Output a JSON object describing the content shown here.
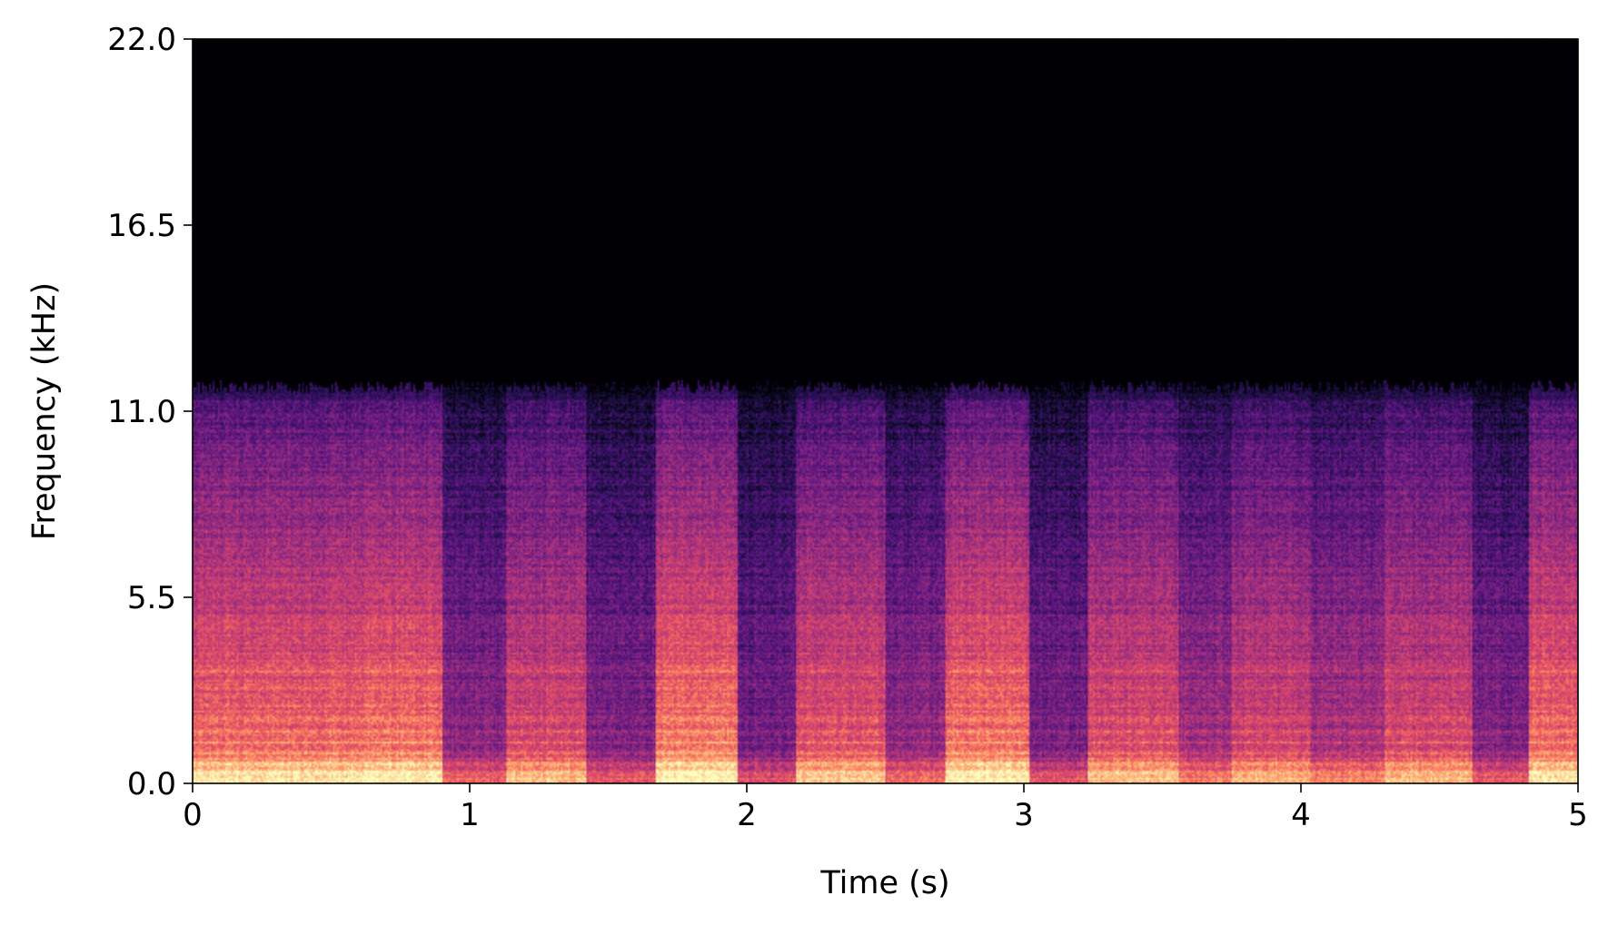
{
  "chart_data": {
    "type": "heatmap",
    "subtype": "spectrogram",
    "title": "",
    "xlabel": "Time (s)",
    "ylabel": "Frequency (kHz)",
    "xlim": [
      0,
      5
    ],
    "ylim": [
      0,
      22.0
    ],
    "xticks": [
      0,
      1,
      2,
      3,
      4,
      5
    ],
    "xtick_labels": [
      "0",
      "1",
      "2",
      "3",
      "4",
      "5"
    ],
    "yticks": [
      0.0,
      5.5,
      11.0,
      16.5,
      22.0
    ],
    "ytick_labels": [
      "0.0",
      "5.5",
      "11.0",
      "16.5",
      "22.0"
    ],
    "colormap": "magma",
    "grid": false,
    "legend": "none",
    "energy_cutoff_khz": 11.9,
    "segments": [
      {
        "start": 0.0,
        "end": 0.62,
        "level": 0.72
      },
      {
        "start": 0.62,
        "end": 0.9,
        "level": 0.74
      },
      {
        "start": 0.9,
        "end": 1.13,
        "level": 0.42
      },
      {
        "start": 1.13,
        "end": 1.42,
        "level": 0.62
      },
      {
        "start": 1.42,
        "end": 1.67,
        "level": 0.4
      },
      {
        "start": 1.67,
        "end": 1.97,
        "level": 0.76
      },
      {
        "start": 1.97,
        "end": 2.18,
        "level": 0.36
      },
      {
        "start": 2.18,
        "end": 2.5,
        "level": 0.66
      },
      {
        "start": 2.5,
        "end": 2.72,
        "level": 0.44
      },
      {
        "start": 2.72,
        "end": 3.02,
        "level": 0.74
      },
      {
        "start": 3.02,
        "end": 3.23,
        "level": 0.38
      },
      {
        "start": 3.23,
        "end": 3.56,
        "level": 0.64
      },
      {
        "start": 3.56,
        "end": 3.75,
        "level": 0.48
      },
      {
        "start": 3.75,
        "end": 4.03,
        "level": 0.6
      },
      {
        "start": 4.03,
        "end": 4.3,
        "level": 0.5
      },
      {
        "start": 4.3,
        "end": 4.62,
        "level": 0.62
      },
      {
        "start": 4.62,
        "end": 4.82,
        "level": 0.4
      },
      {
        "start": 4.82,
        "end": 5.0,
        "level": 0.72
      }
    ],
    "harmonic_lines_khz": [
      0.35,
      0.6,
      0.9,
      1.2,
      1.55,
      1.9,
      2.3,
      2.8,
      3.3
    ]
  }
}
